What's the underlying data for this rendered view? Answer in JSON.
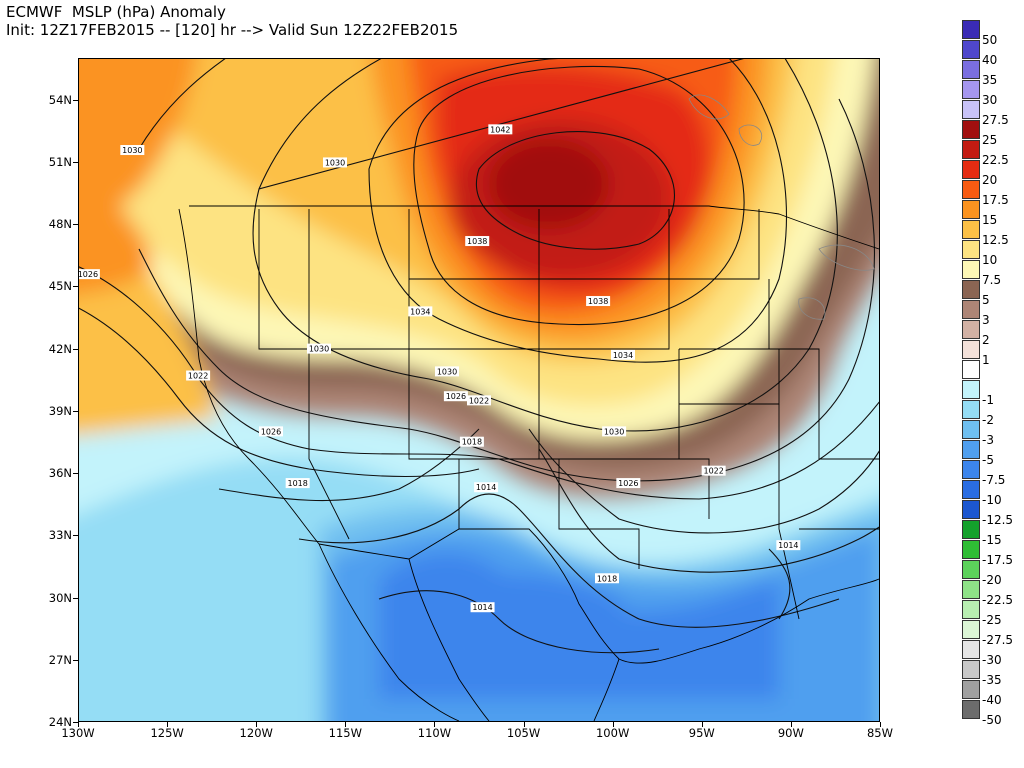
{
  "header": {
    "line1": "ECMWF  MSLP (hPa) Anomaly",
    "line2": "Init: 12Z17FEB2015 -- [120] hr --> Valid Sun 12Z22FEB2015"
  },
  "map": {
    "lon_range": [
      -130,
      -85
    ],
    "lat_range": [
      24,
      56
    ],
    "lat_ticks": [
      {
        "value": 54,
        "label": "54N"
      },
      {
        "value": 51,
        "label": "51N"
      },
      {
        "value": 48,
        "label": "48N"
      },
      {
        "value": 45,
        "label": "45N"
      },
      {
        "value": 42,
        "label": "42N"
      },
      {
        "value": 39,
        "label": "39N"
      },
      {
        "value": 36,
        "label": "36N"
      },
      {
        "value": 33,
        "label": "33N"
      },
      {
        "value": 30,
        "label": "30N"
      },
      {
        "value": 27,
        "label": "27N"
      },
      {
        "value": 24,
        "label": "24N"
      }
    ],
    "lon_ticks": [
      {
        "value": -130,
        "label": "130W"
      },
      {
        "value": -125,
        "label": "125W"
      },
      {
        "value": -120,
        "label": "120W"
      },
      {
        "value": -115,
        "label": "115W"
      },
      {
        "value": -110,
        "label": "110W"
      },
      {
        "value": -105,
        "label": "105W"
      },
      {
        "value": -100,
        "label": "100W"
      },
      {
        "value": -95,
        "label": "95W"
      },
      {
        "value": -90,
        "label": "90W"
      },
      {
        "value": -85,
        "label": "85W"
      }
    ],
    "high_center": {
      "lon": -104,
      "lat": 50,
      "anomaly": 27.5
    },
    "low_center": {
      "lon": -106,
      "lat": 30,
      "anomaly": -10
    },
    "isobar_labels": [
      {
        "text": "1042",
        "lon": -106.3,
        "lat": 52.6
      },
      {
        "text": "1038",
        "lon": -107.6,
        "lat": 47.2
      },
      {
        "text": "1038",
        "lon": -100.8,
        "lat": 44.3
      },
      {
        "text": "1034",
        "lon": -110.8,
        "lat": 43.8
      },
      {
        "text": "1034",
        "lon": -99.4,
        "lat": 41.7
      },
      {
        "text": "1030",
        "lon": -127.0,
        "lat": 51.6
      },
      {
        "text": "1030",
        "lon": -115.6,
        "lat": 51.0
      },
      {
        "text": "1030",
        "lon": -116.5,
        "lat": 42.0
      },
      {
        "text": "1030",
        "lon": -109.3,
        "lat": 40.9
      },
      {
        "text": "1030",
        "lon": -99.9,
        "lat": 38.0
      },
      {
        "text": "1026",
        "lon": -129.5,
        "lat": 45.6
      },
      {
        "text": "1026",
        "lon": -119.2,
        "lat": 38.0
      },
      {
        "text": "1026",
        "lon": -108.8,
        "lat": 39.7
      },
      {
        "text": "1026",
        "lon": -99.1,
        "lat": 35.5
      },
      {
        "text": "1022",
        "lon": -123.3,
        "lat": 40.7
      },
      {
        "text": "1022",
        "lon": -107.5,
        "lat": 39.5
      },
      {
        "text": "1022",
        "lon": -94.3,
        "lat": 36.1
      },
      {
        "text": "1018",
        "lon": -107.9,
        "lat": 37.5
      },
      {
        "text": "1018",
        "lon": -117.7,
        "lat": 35.5
      },
      {
        "text": "1018",
        "lon": -100.3,
        "lat": 30.9
      },
      {
        "text": "1014",
        "lon": -107.1,
        "lat": 35.3
      },
      {
        "text": "1014",
        "lon": -107.3,
        "lat": 29.5
      },
      {
        "text": "1014",
        "lon": -90.1,
        "lat": 32.5
      }
    ]
  },
  "colorbar": [
    {
      "label": "50",
      "color": "#3a2bb5"
    },
    {
      "label": "40",
      "color": "#4f47cc"
    },
    {
      "label": "35",
      "color": "#7a6ee0"
    },
    {
      "label": "30",
      "color": "#a596ef"
    },
    {
      "label": "27.5",
      "color": "#c8c2f7"
    },
    {
      "label": "25",
      "color": "#a10f0f"
    },
    {
      "label": "22.5",
      "color": "#c21b12"
    },
    {
      "label": "20",
      "color": "#e42c12"
    },
    {
      "label": "17.5",
      "color": "#f75b12"
    },
    {
      "label": "15",
      "color": "#fb9320"
    },
    {
      "label": "12.5",
      "color": "#fcc046"
    },
    {
      "label": "10",
      "color": "#fde382"
    },
    {
      "label": "7.5",
      "color": "#fdf7b6"
    },
    {
      "label": "5",
      "color": "#8b6553"
    },
    {
      "label": "3",
      "color": "#ad8576"
    },
    {
      "label": "2",
      "color": "#d2b1a4"
    },
    {
      "label": "1",
      "color": "#f3e1da"
    },
    {
      "label": "",
      "color": "#ffffff"
    },
    {
      "label": "-1",
      "color": "#c3f3fb"
    },
    {
      "label": "-2",
      "color": "#95ddf5"
    },
    {
      "label": "-3",
      "color": "#6fbff0"
    },
    {
      "label": "-5",
      "color": "#509fef"
    },
    {
      "label": "-7.5",
      "color": "#3c85ec"
    },
    {
      "label": "-10",
      "color": "#2a6de2"
    },
    {
      "label": "-12.5",
      "color": "#1c57d0"
    },
    {
      "label": "-15",
      "color": "#14a12c"
    },
    {
      "label": "-17.5",
      "color": "#2fbd35"
    },
    {
      "label": "-20",
      "color": "#5cd25b"
    },
    {
      "label": "-22.5",
      "color": "#8ee287"
    },
    {
      "label": "-25",
      "color": "#b8eeb1"
    },
    {
      "label": "-27.5",
      "color": "#dcf6d6"
    },
    {
      "label": "-30",
      "color": "#e6e6e6"
    },
    {
      "label": "-35",
      "color": "#c8c8c8"
    },
    {
      "label": "-40",
      "color": "#a0a0a0"
    },
    {
      "label": "-50",
      "color": "#6c6c6c"
    }
  ]
}
